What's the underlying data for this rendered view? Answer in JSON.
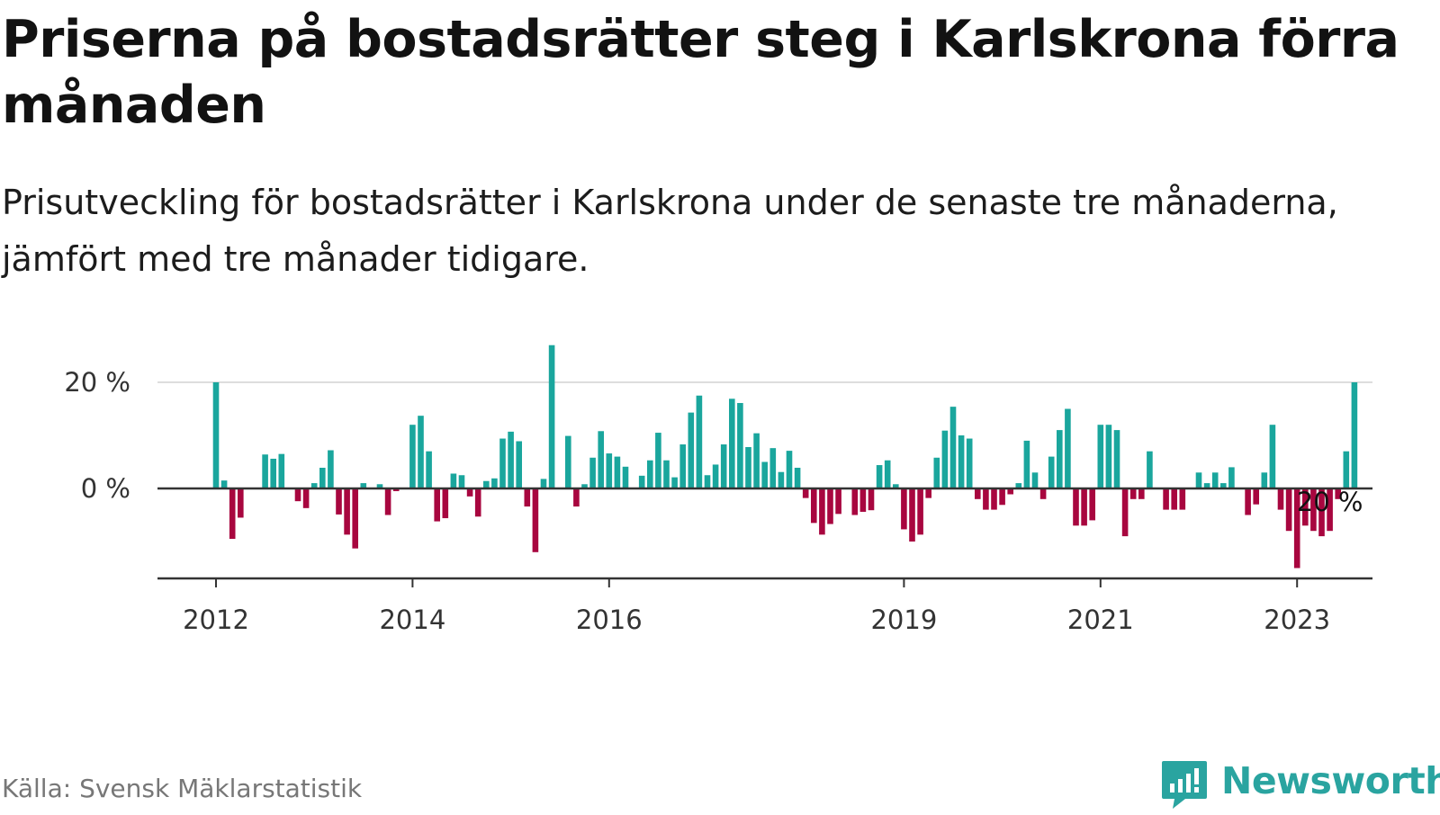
{
  "title": "Priserna på bostadsrätter steg i Karlskrona förra månaden",
  "subtitle": "Prisutveckling för bostadsrätter i Karlskrona under de senaste tre månaderna, jämfört med tre månader tidigare.",
  "source": "Källa: Svensk Mäklarstatistik",
  "brand": "Newsworthy",
  "colors": {
    "positive": "#1aa69d",
    "negative": "#a8063f",
    "brand": "#2aa4a0"
  },
  "chart_data": {
    "type": "bar",
    "y_unit": "%",
    "ylim": [
      -17,
      27
    ],
    "y_ticks": [
      {
        "value": 0,
        "label": "0 %"
      },
      {
        "value": 20,
        "label": "20 %"
      }
    ],
    "grid": true,
    "x_ticks": [
      {
        "label": "2012",
        "index": 0
      },
      {
        "label": "2014",
        "index": 24
      },
      {
        "label": "2016",
        "index": 48
      },
      {
        "label": "2019",
        "index": 84
      },
      {
        "label": "2021",
        "index": 108
      },
      {
        "label": "2023",
        "index": 132
      }
    ],
    "annotation": {
      "index": 136,
      "label": "20 %"
    },
    "values": [
      20,
      1.5,
      -9.5,
      -5.5,
      0,
      0,
      6.4,
      5.6,
      6.5,
      0,
      -2.4,
      -3.7,
      1,
      3.9,
      7.2,
      -4.9,
      -8.7,
      -11.3,
      1,
      0,
      0.8,
      -5,
      -0.5,
      0,
      12,
      13.7,
      7,
      -6.2,
      -5.6,
      2.8,
      2.5,
      -1.5,
      -5.3,
      1.4,
      1.9,
      9.4,
      10.7,
      8.9,
      -3.4,
      -12,
      1.8,
      27,
      0,
      9.9,
      -3.4,
      0.8,
      5.8,
      10.8,
      6.6,
      6,
      4.1,
      0,
      2.4,
      5.3,
      10.5,
      5.3,
      2.1,
      8.3,
      14.3,
      17.5,
      2.5,
      4.5,
      8.3,
      16.9,
      16.1,
      7.8,
      10.4,
      5,
      7.6,
      3.1,
      7.1,
      3.9,
      -1.8,
      -6.5,
      -8.7,
      -6.7,
      -4.8,
      0,
      -5,
      -4.4,
      -4.1,
      4.4,
      5.3,
      0.8,
      -7.7,
      -10,
      -8.7,
      -1.8,
      5.8,
      10.9,
      15.4,
      10,
      9.4,
      -2,
      -4,
      -4,
      -3.1,
      -1.1,
      1,
      9,
      3,
      -2,
      6,
      11,
      15,
      -7,
      -7,
      -6,
      12,
      12,
      11,
      -9,
      -2,
      -2,
      7,
      0,
      -4,
      -4,
      -4,
      0,
      3,
      1,
      3,
      1,
      4,
      0,
      -5,
      -3,
      3,
      12,
      -4,
      -8,
      -15,
      -7,
      -8,
      -9,
      -8,
      -2,
      7,
      20
    ]
  }
}
